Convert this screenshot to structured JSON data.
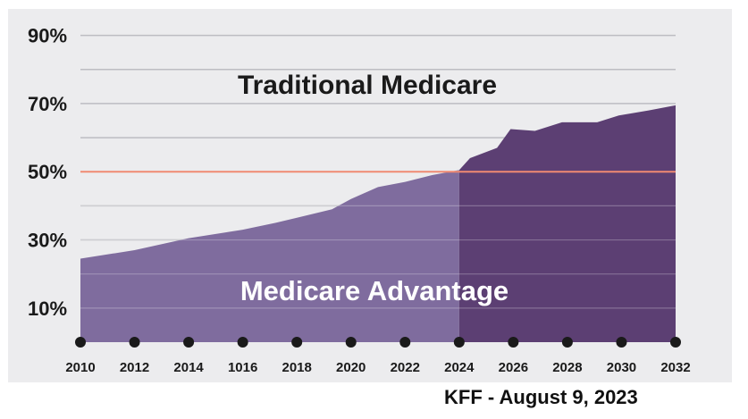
{
  "chart_data": {
    "type": "area",
    "title": "",
    "xlabel": "",
    "ylabel": "",
    "x": [
      "2010",
      "2012",
      "2014",
      "1016",
      "2018",
      "2020",
      "2022",
      "2024",
      "2026",
      "2028",
      "2030",
      "2032"
    ],
    "x_index": [
      0,
      1,
      2,
      3,
      4,
      5,
      6,
      7,
      8,
      9,
      10,
      11
    ],
    "ylim": [
      0,
      92
    ],
    "y_ticks": [
      90,
      70,
      50,
      30,
      10
    ],
    "y_tick_labels": [
      "90%",
      "70%",
      "50%",
      "30%",
      "10%"
    ],
    "grid": true,
    "series": [
      {
        "name": "Medicare Advantage",
        "points": [
          [
            0,
            24.5
          ],
          [
            1,
            27
          ],
          [
            2,
            30.5
          ],
          [
            3,
            33
          ],
          [
            3.6,
            35
          ],
          [
            4,
            36.5
          ],
          [
            4.65,
            39
          ],
          [
            5,
            42
          ],
          [
            5.5,
            45.5
          ],
          [
            6,
            47
          ],
          [
            6.5,
            49
          ],
          [
            7,
            50.5
          ],
          [
            7.2,
            54
          ],
          [
            7.7,
            57
          ],
          [
            7.95,
            62.5
          ],
          [
            8.4,
            62
          ],
          [
            8.9,
            64.5
          ],
          [
            9.55,
            64.5
          ],
          [
            9.95,
            66.5
          ],
          [
            10.5,
            68
          ],
          [
            11,
            69.5
          ]
        ],
        "projection_start_x": 7
      }
    ],
    "reference_line": {
      "y": 50
    },
    "annotations": {
      "upper": "Traditional Medicare",
      "lower": "Medicare Advantage"
    },
    "colors": {
      "historical_fill": "#7f6c9e",
      "projected_fill": "#5c3f73",
      "reference_line": "#f08a72",
      "gridline": "#bdbdc2",
      "marker": "#1a1a1a",
      "background": "#ececee"
    }
  },
  "source": "KFF - August 9, 2023"
}
